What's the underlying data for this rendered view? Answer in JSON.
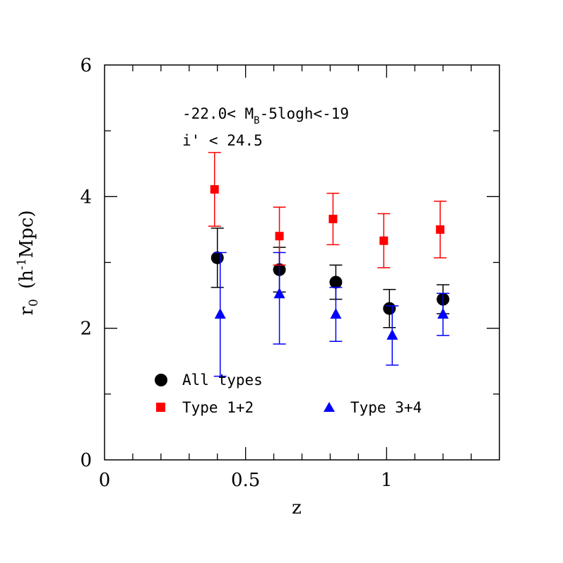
{
  "chart_data": {
    "type": "scatter",
    "title": "",
    "xlabel": "z",
    "ylabel": "r_0 (h^-1 Mpc)",
    "ylabel_parts": {
      "base": "r",
      "sub": "0",
      "open": "(h",
      "sup": "-1",
      "close": "Mpc)"
    },
    "xlim": [
      0,
      1.4
    ],
    "ylim": [
      0,
      6
    ],
    "xticks_major": [
      0,
      0.5,
      1
    ],
    "xtick_labels": [
      "0",
      "0.5",
      "1"
    ],
    "xticks_minor_step": 0.1,
    "yticks_major": [
      0,
      2,
      4,
      6
    ],
    "ytick_labels": [
      "0",
      "2",
      "4",
      "6"
    ],
    "yticks_minor_step": 1,
    "grid": false,
    "annotations": {
      "line1_prefix": "-22.0< M",
      "line1_sub": "B",
      "line1_suffix": "-5logh<-19",
      "line2": "i' < 24.5"
    },
    "series": [
      {
        "name": "All types",
        "marker": "circle",
        "color": "#000000",
        "x": [
          0.4,
          0.62,
          0.82,
          1.01,
          1.2
        ],
        "y": [
          3.07,
          2.89,
          2.7,
          2.3,
          2.44
        ],
        "yerr_low": [
          0.45,
          0.34,
          0.26,
          0.29,
          0.22
        ],
        "yerr_high": [
          0.45,
          0.34,
          0.26,
          0.29,
          0.22
        ]
      },
      {
        "name": "Type 1+2",
        "marker": "square",
        "color": "#ff0000",
        "x": [
          0.39,
          0.62,
          0.81,
          0.99,
          1.19
        ],
        "y": [
          4.11,
          3.4,
          3.66,
          3.33,
          3.5
        ],
        "yerr_low": [
          0.56,
          0.44,
          0.39,
          0.41,
          0.43
        ],
        "yerr_high": [
          0.56,
          0.44,
          0.39,
          0.41,
          0.43
        ]
      },
      {
        "name": "Type 3+4",
        "marker": "triangle",
        "color": "#0000ff",
        "x": [
          0.41,
          0.62,
          0.82,
          1.02,
          1.2
        ],
        "y": [
          2.21,
          2.52,
          2.21,
          1.89,
          2.21
        ],
        "yerr_low": [
          0.94,
          0.76,
          0.41,
          0.45,
          0.32
        ],
        "yerr_high": [
          0.94,
          0.63,
          0.41,
          0.45,
          0.32
        ]
      }
    ],
    "legend": {
      "location": "lower-left",
      "entries": [
        "All types",
        "Type 1+2",
        "Type 3+4"
      ]
    }
  }
}
